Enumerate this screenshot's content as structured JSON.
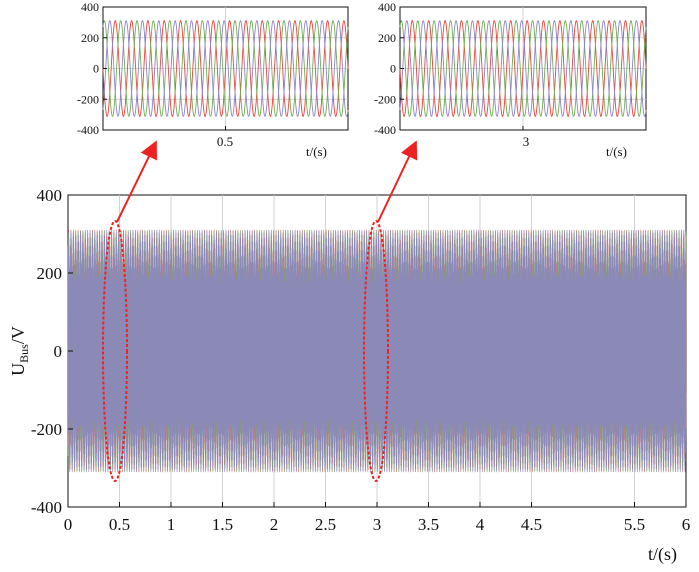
{
  "colors": {
    "phase_a": "#e8453a",
    "phase_b": "#6fae55",
    "phase_c": "#8d86c9",
    "annotation": "#ee2222",
    "grid": "#c8c8c8",
    "axis": "#111111"
  },
  "chart_data": [
    {
      "id": "main",
      "type": "line",
      "ylabel_main": "U",
      "ylabel_sub": "Bus",
      "ylabel_unit": "/V",
      "xlabel": "t/(s)",
      "xlim": [
        0,
        6
      ],
      "ylim": [
        -400,
        400
      ],
      "xticks": [
        0,
        0.5,
        1,
        1.5,
        2,
        2.5,
        3,
        3.5,
        4,
        4.5,
        5.5,
        6
      ],
      "xtick_labels": [
        "0",
        "0.5",
        "1",
        "1.5",
        "2",
        "2.5",
        "3",
        "3.5",
        "4",
        "4.5",
        "5.5",
        "6"
      ],
      "yticks": [
        -400,
        -200,
        0,
        200,
        400
      ],
      "ytick_labels": [
        "-400",
        "-200",
        "0",
        "200",
        "400"
      ],
      "grid": true,
      "series_model": "three-phase sine, amplitude 311 V, 50 Hz, 120° phase shift",
      "amplitude": 311,
      "frequency_hz": 50,
      "highlight_windows": [
        0.5,
        3
      ]
    },
    {
      "id": "zoom_left",
      "type": "line",
      "xlabel": "t/(s)",
      "xtick_label": "0.5",
      "center": 0.5,
      "ylim": [
        -400,
        400
      ],
      "yticks": [
        -400,
        -200,
        0,
        200,
        400
      ],
      "ytick_labels": [
        "-400",
        "-200",
        "0",
        "200",
        "400"
      ],
      "grid": true,
      "amplitude": 311,
      "frequency_hz": 50
    },
    {
      "id": "zoom_right",
      "type": "line",
      "xlabel": "t/(s)",
      "xtick_label": "3",
      "center": 3,
      "ylim": [
        -400,
        400
      ],
      "yticks": [
        -400,
        -200,
        0,
        200,
        400
      ],
      "ytick_labels": [
        "-400",
        "-200",
        "0",
        "200",
        "400"
      ],
      "grid": true,
      "amplitude": 311,
      "frequency_hz": 50
    }
  ]
}
